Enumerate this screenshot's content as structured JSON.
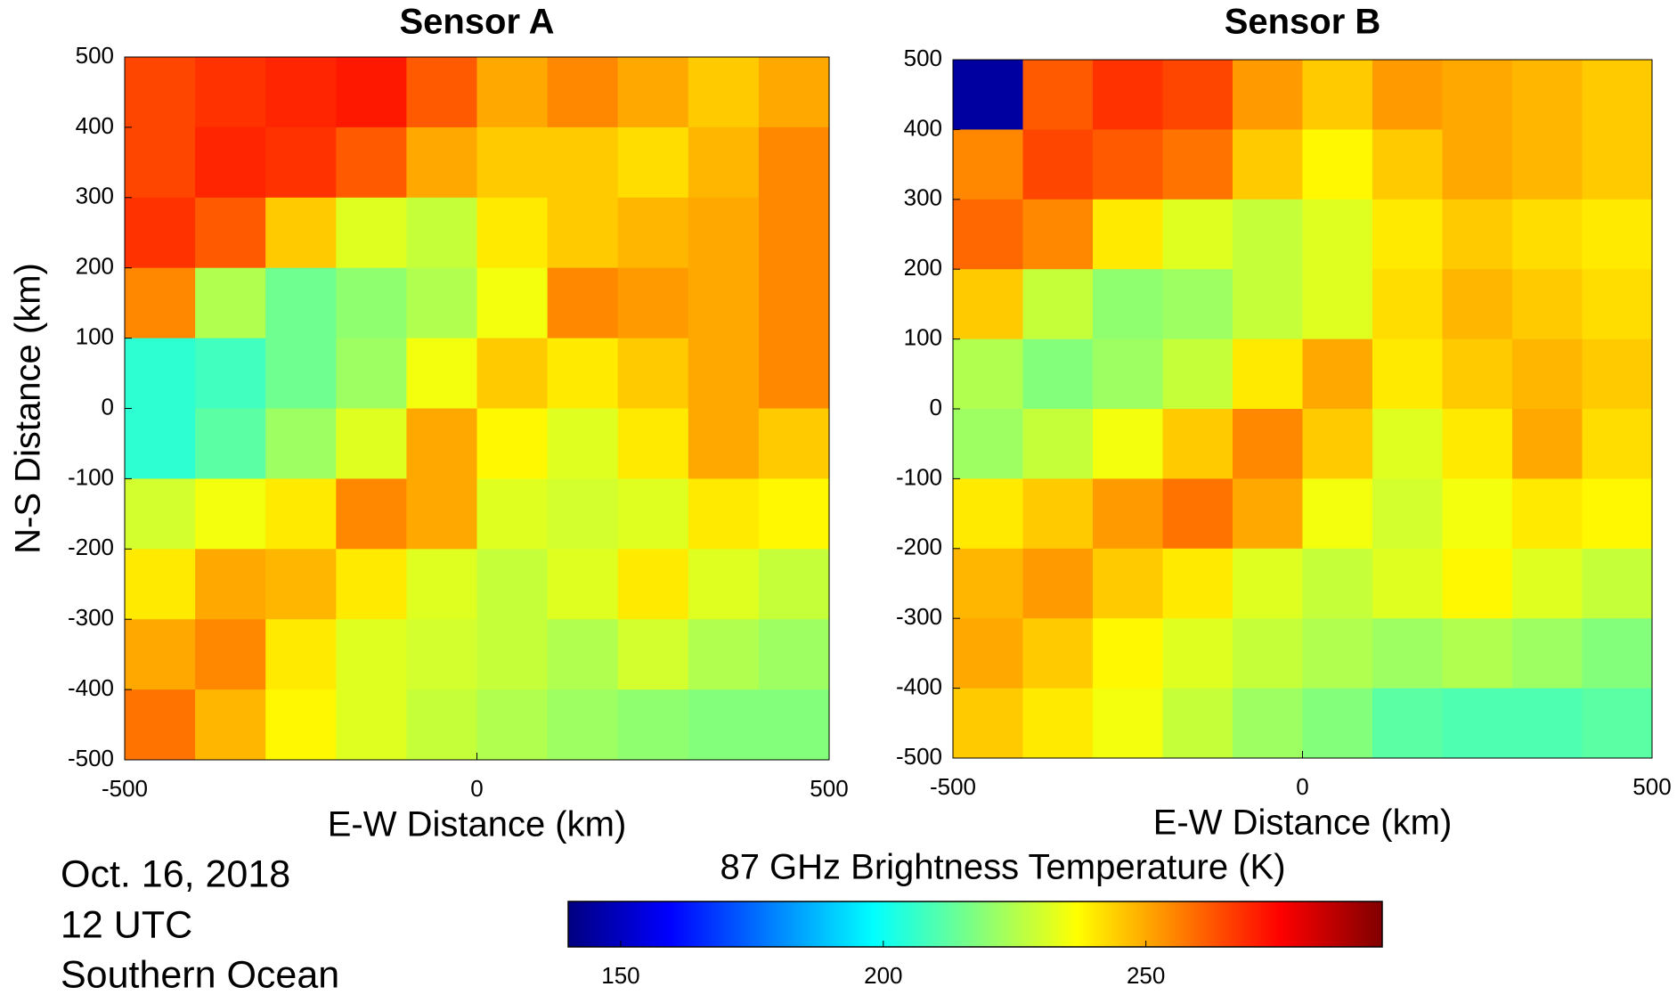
{
  "chart_data": [
    {
      "type": "heatmap",
      "title": "Sensor A",
      "xlabel": "E-W Distance (km)",
      "ylabel": "N-S Distance (km)",
      "x": [
        -450,
        -350,
        -250,
        -150,
        -50,
        50,
        150,
        250,
        350,
        450
      ],
      "y": [
        450,
        350,
        250,
        150,
        50,
        -50,
        -150,
        -250,
        -350,
        -450
      ],
      "values": [
        [
          265,
          268,
          270,
          272,
          262,
          250,
          255,
          250,
          245,
          250
        ],
        [
          265,
          270,
          268,
          262,
          250,
          245,
          245,
          242,
          248,
          255
        ],
        [
          268,
          262,
          245,
          232,
          228,
          240,
          245,
          248,
          250,
          255
        ],
        [
          255,
          225,
          215,
          220,
          225,
          235,
          255,
          252,
          250,
          255
        ],
        [
          205,
          208,
          215,
          222,
          235,
          245,
          240,
          245,
          250,
          255
        ],
        [
          205,
          212,
          222,
          232,
          250,
          238,
          232,
          240,
          250,
          245
        ],
        [
          230,
          235,
          240,
          255,
          250,
          232,
          230,
          232,
          240,
          238
        ],
        [
          240,
          250,
          248,
          240,
          232,
          228,
          232,
          240,
          232,
          228
        ],
        [
          250,
          255,
          240,
          232,
          230,
          228,
          225,
          230,
          225,
          222
        ],
        [
          258,
          248,
          238,
          232,
          228,
          225,
          222,
          220,
          218,
          218
        ]
      ],
      "xlim": [
        -500,
        500
      ],
      "ylim": [
        -500,
        500
      ],
      "xticks": [
        -500,
        0,
        500
      ],
      "yticks": [
        -500,
        -400,
        -300,
        -200,
        -100,
        0,
        100,
        200,
        300,
        400,
        500
      ],
      "zlim": [
        140,
        295
      ],
      "colormap": "jet"
    },
    {
      "type": "heatmap",
      "title": "Sensor B",
      "xlabel": "E-W Distance (km)",
      "x": [
        -450,
        -350,
        -250,
        -150,
        -50,
        50,
        150,
        250,
        350,
        450
      ],
      "y": [
        450,
        350,
        250,
        150,
        50,
        -50,
        -150,
        -250,
        -350,
        -450
      ],
      "values": [
        [
          145,
          262,
          268,
          265,
          252,
          245,
          252,
          250,
          248,
          245
        ],
        [
          255,
          265,
          262,
          258,
          245,
          238,
          245,
          250,
          248,
          245
        ],
        [
          260,
          255,
          240,
          232,
          228,
          232,
          240,
          245,
          242,
          240
        ],
        [
          245,
          228,
          220,
          222,
          228,
          232,
          242,
          248,
          245,
          242
        ],
        [
          225,
          218,
          222,
          228,
          240,
          250,
          240,
          245,
          248,
          245
        ],
        [
          222,
          228,
          235,
          245,
          255,
          245,
          232,
          240,
          250,
          242
        ],
        [
          240,
          245,
          252,
          258,
          250,
          235,
          230,
          235,
          240,
          238
        ],
        [
          248,
          252,
          245,
          240,
          232,
          228,
          232,
          238,
          232,
          228
        ],
        [
          250,
          245,
          238,
          232,
          228,
          225,
          222,
          225,
          222,
          218
        ],
        [
          245,
          240,
          235,
          228,
          222,
          218,
          212,
          210,
          210,
          212
        ]
      ],
      "xlim": [
        -500,
        500
      ],
      "ylim": [
        -500,
        500
      ],
      "xticks": [
        -500,
        0,
        500
      ],
      "yticks": [
        -500,
        -400,
        -300,
        -200,
        -100,
        0,
        100,
        200,
        300,
        400,
        500
      ],
      "zlim": [
        140,
        295
      ],
      "colormap": "jet"
    }
  ],
  "colorbar": {
    "label": "87 GHz Brightness Temperature (K)",
    "zlim": [
      140,
      295
    ],
    "ticks": [
      150,
      200,
      250
    ]
  },
  "annotations": [
    "Oct. 16, 2018",
    "12 UTC",
    "Southern Ocean"
  ]
}
